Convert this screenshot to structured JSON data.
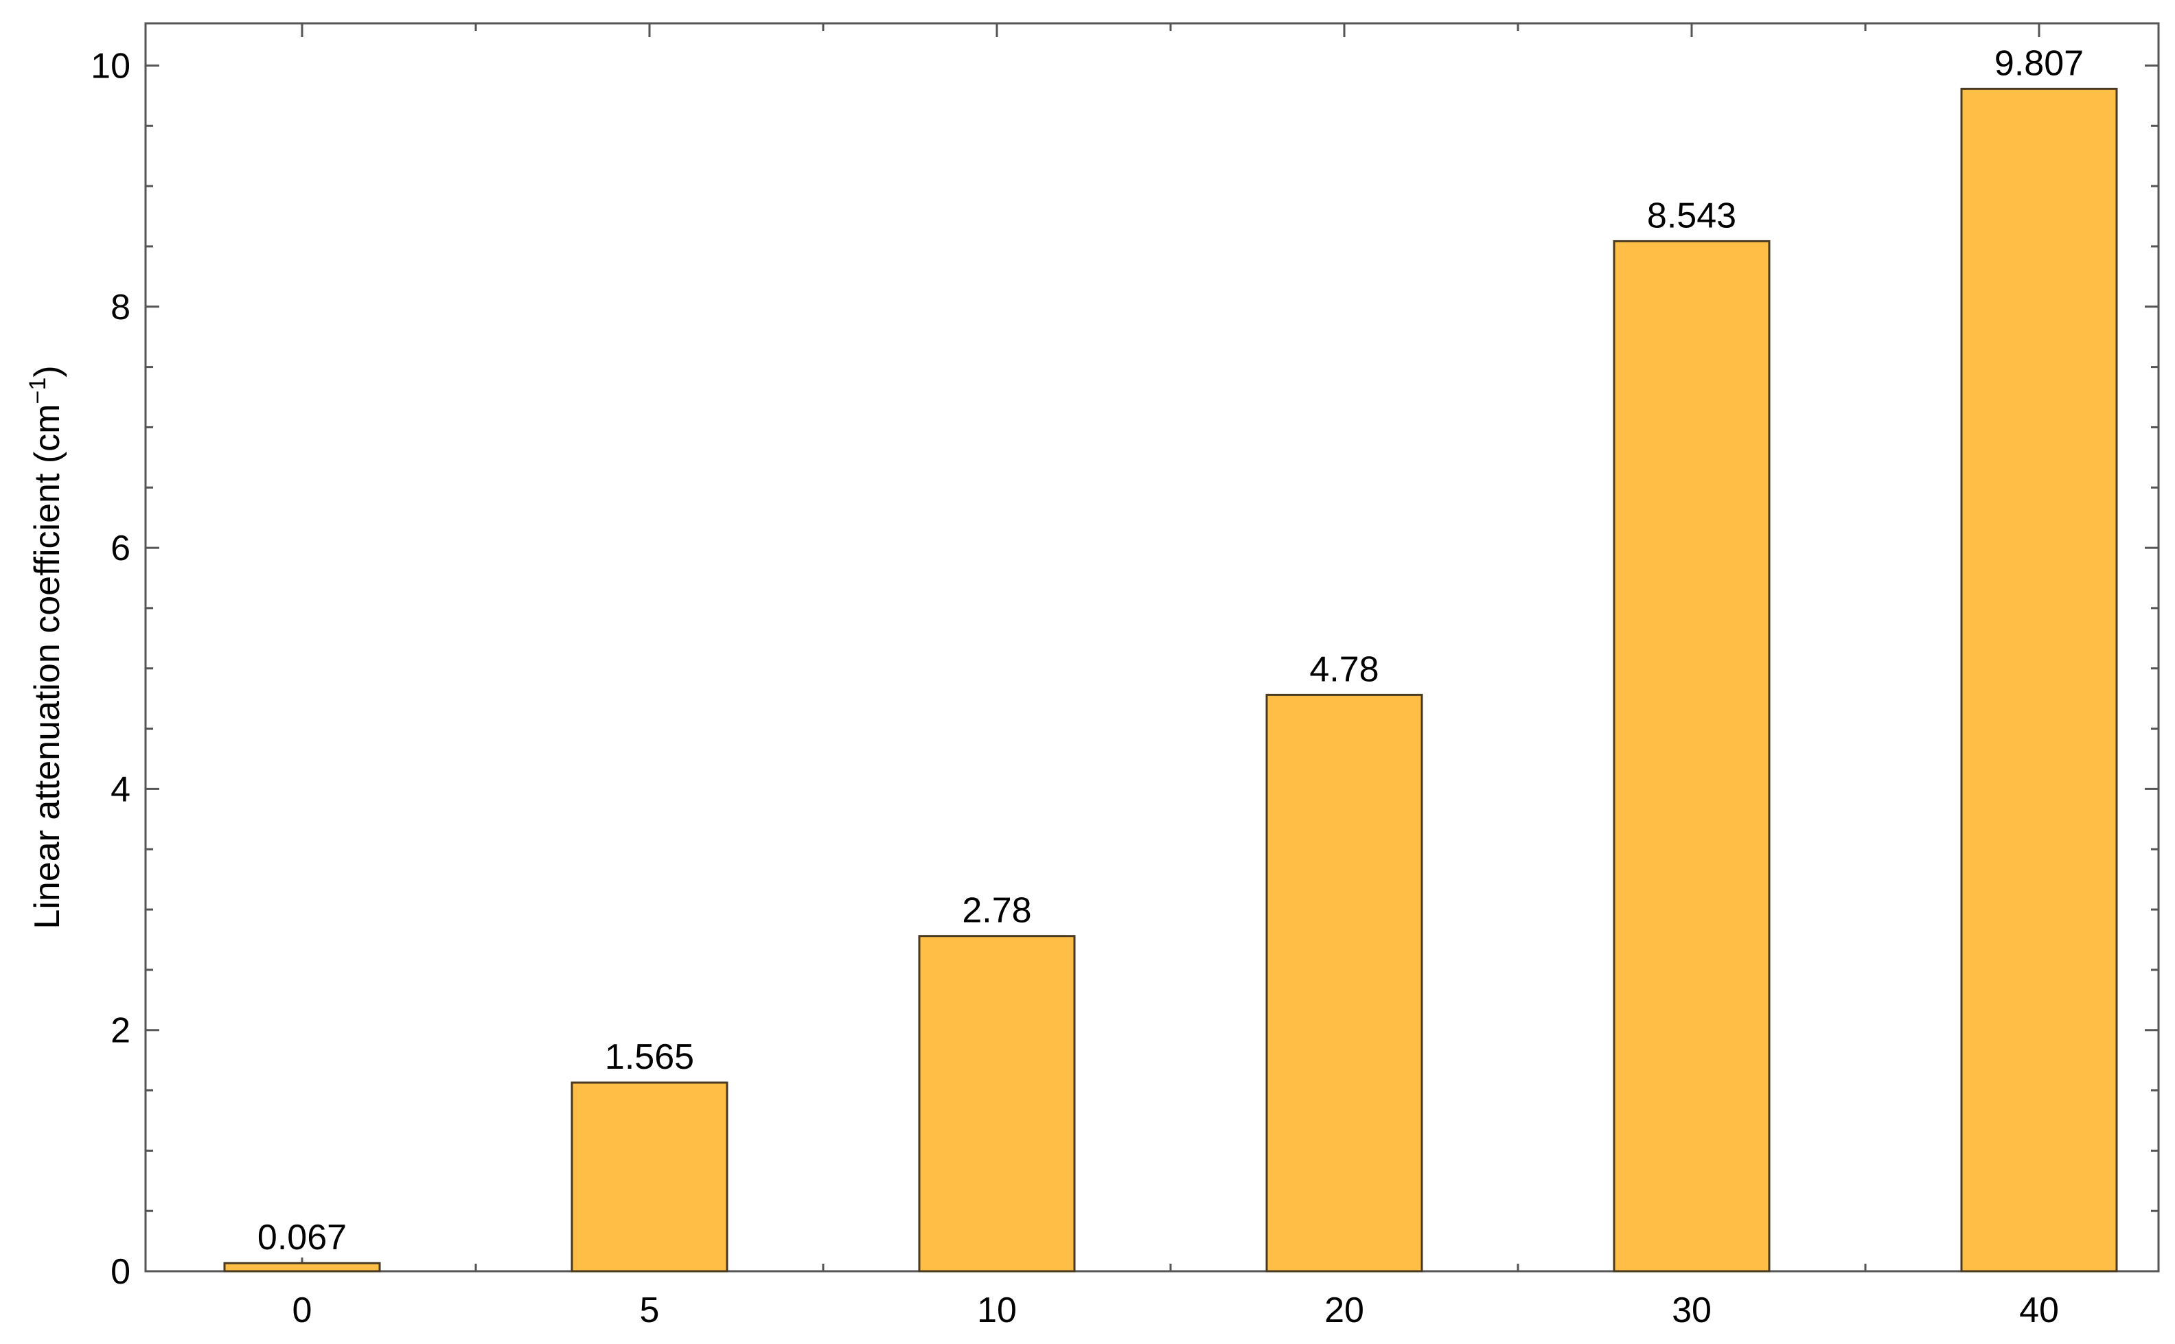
{
  "chart_data": {
    "type": "bar",
    "categories": [
      "0",
      "5",
      "10",
      "20",
      "30",
      "40"
    ],
    "values": [
      0.067,
      1.565,
      2.78,
      4.78,
      8.543,
      9.807
    ],
    "data_labels": [
      "0.067",
      "1.565",
      "2.78",
      "4.78",
      "8.543",
      "9.807"
    ],
    "title": "",
    "xlabel": "",
    "ylabel": {
      "text": "Linear attenuation coefficient (cm",
      "superscript": "−1",
      "suffix": ")"
    },
    "ylim": [
      0,
      10.35
    ],
    "yticks": [
      0,
      2,
      4,
      6,
      8,
      10
    ],
    "ytick_labels": [
      "0",
      "2",
      "4",
      "6",
      "8",
      "10"
    ],
    "y_minor_step": 0.5,
    "grid": false,
    "legend": "none",
    "colors": {
      "bar_fill": "#FFBE46",
      "bar_stroke": "#4A3A22",
      "axis": "#555555",
      "text": "#000000"
    }
  }
}
